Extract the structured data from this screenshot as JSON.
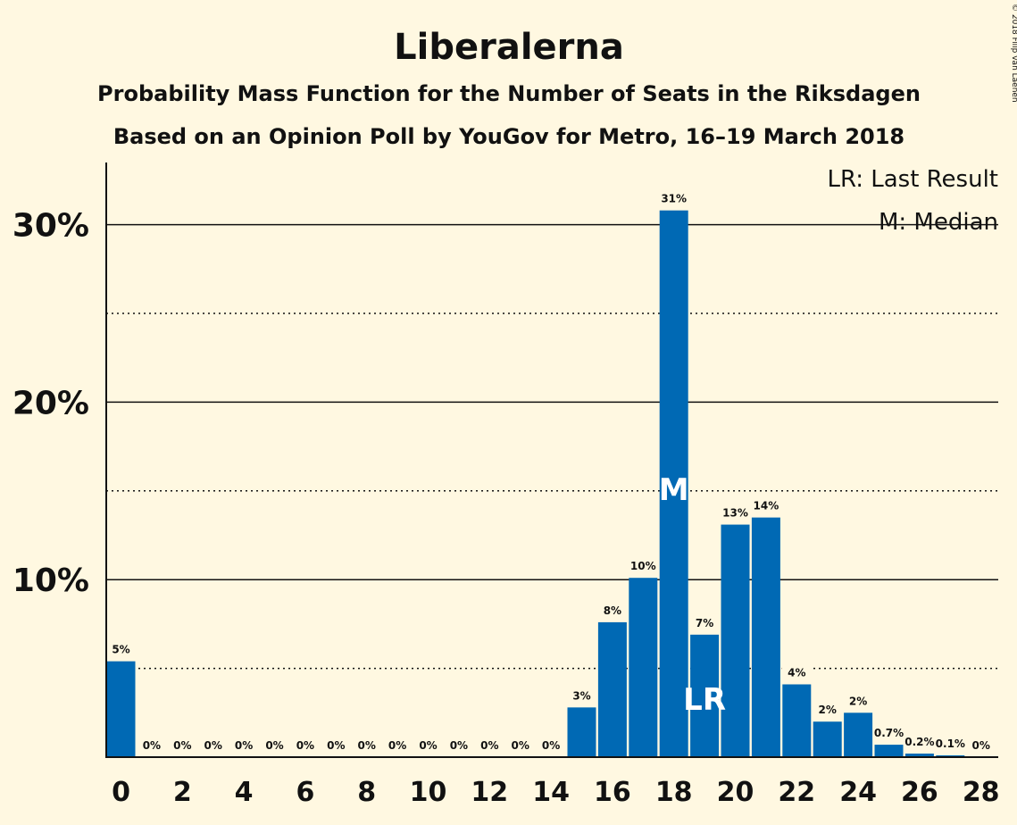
{
  "copyright": "© 2018 Filip van Laenen",
  "colors": {
    "bar": "#0069b4",
    "background": "#fff8e1",
    "text": "#111111"
  },
  "legend": {
    "lr": "LR: Last Result",
    "m": "M: Median"
  },
  "chart_data": {
    "type": "bar",
    "title": "Liberalerna",
    "subtitle": "Probability Mass Function for the Number of Seats in the Riksdagen",
    "subtitle2": "Based on an Opinion Poll by YouGov for Metro, 16–19 March 2018",
    "x": [
      0,
      1,
      2,
      3,
      4,
      5,
      6,
      7,
      8,
      9,
      10,
      11,
      12,
      13,
      14,
      15,
      16,
      17,
      18,
      19,
      20,
      21,
      22,
      23,
      24,
      25,
      26,
      27,
      28
    ],
    "values": [
      5.4,
      0,
      0,
      0,
      0,
      0,
      0,
      0,
      0,
      0,
      0,
      0,
      0,
      0,
      0,
      2.8,
      7.6,
      10.1,
      30.8,
      6.9,
      13.1,
      13.5,
      4.1,
      2.0,
      2.5,
      0.7,
      0.2,
      0.1,
      0
    ],
    "labels": [
      "5%",
      "0%",
      "0%",
      "0%",
      "0%",
      "0%",
      "0%",
      "0%",
      "0%",
      "0%",
      "0%",
      "0%",
      "0%",
      "0%",
      "0%",
      "3%",
      "8%",
      "10%",
      "31%",
      "7%",
      "13%",
      "14%",
      "4%",
      "2%",
      "2%",
      "0.7%",
      "0.2%",
      "0.1%",
      "0%"
    ],
    "xticks": [
      0,
      2,
      4,
      6,
      8,
      10,
      12,
      14,
      16,
      18,
      20,
      22,
      24,
      26,
      28
    ],
    "yticks": [
      {
        "value": 10,
        "label": "10%"
      },
      {
        "value": 20,
        "label": "20%"
      },
      {
        "value": 30,
        "label": "30%"
      }
    ],
    "ydotted": [
      5,
      15,
      25
    ],
    "ylim": [
      0,
      33.5
    ],
    "median_seat": 18,
    "median_label": "M",
    "last_result_seat": 19,
    "last_result_label": "LR",
    "legend_position": "top-right",
    "grid": true
  }
}
